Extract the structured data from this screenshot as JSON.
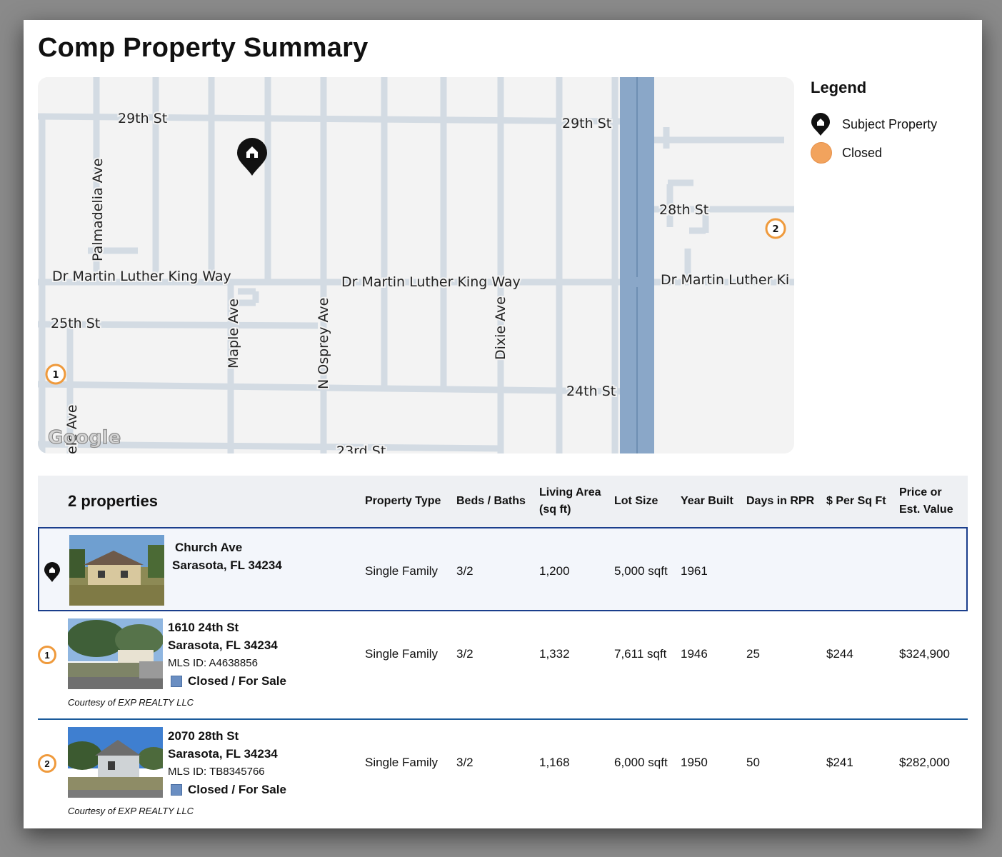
{
  "page_title": "Comp Property Summary",
  "map": {
    "streets": {
      "st29_left": "29th St",
      "st29_right": "29th St",
      "st28": "28th St",
      "mlk_left": "Dr Martin Luther King Way",
      "mlk_mid": "Dr Martin Luther King Way",
      "mlk_right": "Dr Martin Luther Ki",
      "st25": "25th St",
      "st24": "24th St",
      "st23": "23rd St",
      "palmadelia": "Palmadelia Ave",
      "maple": "Maple Ave",
      "osprey": "N Osprey Ave",
      "dixie": "Dixie Ave",
      "church_partial": "ele Ave"
    },
    "google_logo": "Google",
    "markers": {
      "comp1": "1",
      "comp2": "2"
    }
  },
  "legend": {
    "title": "Legend",
    "subject": "Subject Property",
    "closed": "Closed",
    "closed_color": "#f2a35d"
  },
  "table": {
    "count_label": "2 properties",
    "headers": {
      "type": "Property Type",
      "beds": "Beds / Baths",
      "area_1": "Living Area",
      "area_2": "(sq ft)",
      "lot": "Lot Size",
      "year": "Year Built",
      "days": "Days in RPR",
      "psf": "$ Per Sq Ft",
      "price_1": "Price or",
      "price_2": "Est. Value"
    },
    "subject": {
      "street": "Church Ave",
      "city": "Sarasota, FL 34234",
      "type": "Single Family",
      "beds": "3/2",
      "area": "1,200",
      "lot": "5,000 sqft",
      "year": "1961"
    },
    "comps": [
      {
        "badge": "1",
        "street": "1610 24th St",
        "city": "Sarasota, FL 34234",
        "mls": "MLS ID: A4638856",
        "status": "Closed / For Sale",
        "courtesy": "Courtesy of EXP REALTY LLC",
        "type": "Single Family",
        "beds": "3/2",
        "area": "1,332",
        "lot": "7,611 sqft",
        "year": "1946",
        "days": "25",
        "psf": "$244",
        "price": "$324,900"
      },
      {
        "badge": "2",
        "street": "2070 28th St",
        "city": "Sarasota, FL 34234",
        "mls": "MLS ID: TB8345766",
        "status": "Closed / For Sale",
        "courtesy": "Courtesy of EXP REALTY LLC",
        "type": "Single Family",
        "beds": "3/2",
        "area": "1,168",
        "lot": "6,000 sqft",
        "year": "1950",
        "days": "50",
        "psf": "$241",
        "price": "$282,000"
      }
    ]
  }
}
